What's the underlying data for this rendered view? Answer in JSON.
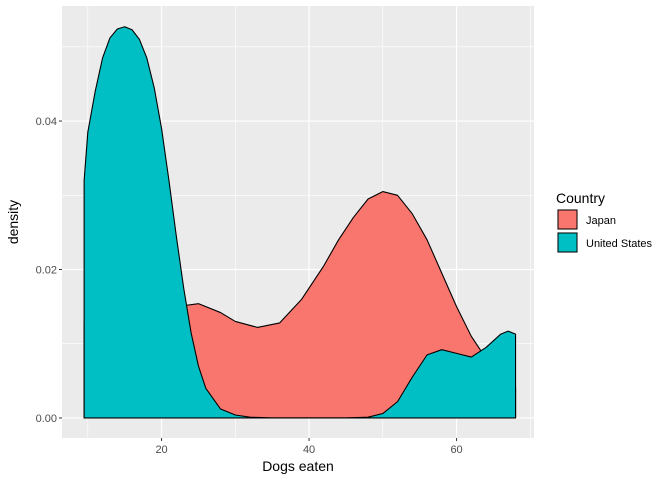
{
  "chart_data": {
    "type": "area",
    "title": "",
    "xlabel": "Dogs eaten",
    "ylabel": "density",
    "xlim": [
      6.5,
      70.5
    ],
    "ylim": [
      -0.0027,
      0.0555
    ],
    "x_ticks": [
      20,
      40,
      60
    ],
    "x_tick_labels": [
      "20",
      "40",
      "60"
    ],
    "y_ticks": [
      0,
      0.02,
      0.04
    ],
    "y_tick_labels": [
      "0.00",
      "0.02",
      "0.04"
    ],
    "grid": true,
    "legend": {
      "title": "Country",
      "position": "right"
    },
    "series": [
      {
        "name": "Japan",
        "color": "#F8766D",
        "x": [
          9.5,
          12,
          15,
          18,
          20,
          22,
          25,
          28,
          30,
          33,
          36,
          39,
          42,
          44,
          46,
          48,
          50,
          52,
          54,
          56,
          58,
          60,
          62,
          64,
          65,
          66,
          67,
          68
        ],
        "y": [
          0.013,
          0.0133,
          0.0136,
          0.014,
          0.0145,
          0.015,
          0.0154,
          0.0142,
          0.013,
          0.0122,
          0.0128,
          0.016,
          0.0205,
          0.024,
          0.027,
          0.0295,
          0.0305,
          0.03,
          0.0275,
          0.024,
          0.0195,
          0.015,
          0.011,
          0.008,
          0.0065,
          0.0055,
          0.0047,
          0.0041
        ]
      },
      {
        "name": "United States",
        "color": "#00BFC4",
        "x": [
          9.5,
          10,
          11,
          12,
          13,
          14,
          15,
          16,
          17,
          18,
          19,
          20,
          21,
          22,
          23,
          24,
          25,
          26,
          28,
          30,
          32,
          35,
          40,
          45,
          48,
          50,
          52,
          54,
          56,
          58,
          60,
          62,
          64,
          66,
          67,
          68
        ],
        "y": [
          0.032,
          0.0385,
          0.044,
          0.0485,
          0.0512,
          0.0524,
          0.0527,
          0.0523,
          0.051,
          0.0485,
          0.0445,
          0.039,
          0.032,
          0.0245,
          0.0175,
          0.0115,
          0.007,
          0.004,
          0.0012,
          0.0004,
          0.0001,
          0.0,
          0.0,
          0.0,
          0.0001,
          0.0006,
          0.0022,
          0.0055,
          0.0085,
          0.0092,
          0.0087,
          0.0082,
          0.0095,
          0.0113,
          0.0117,
          0.0113
        ]
      }
    ]
  }
}
